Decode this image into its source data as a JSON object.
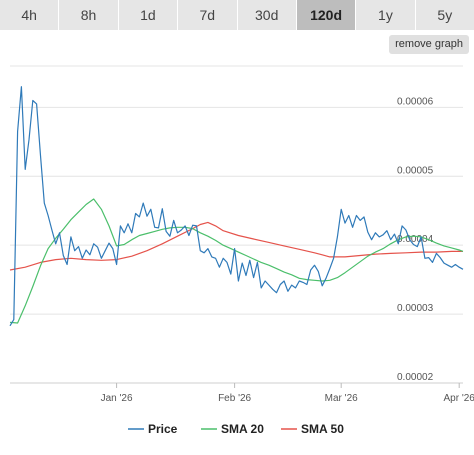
{
  "tabs": [
    {
      "label": "4h"
    },
    {
      "label": "8h"
    },
    {
      "label": "1d"
    },
    {
      "label": "7d"
    },
    {
      "label": "30d"
    },
    {
      "label": "120d",
      "active": true
    },
    {
      "label": "1y"
    },
    {
      "label": "5y"
    }
  ],
  "remove_label": "remove graph",
  "chart_data": {
    "type": "line",
    "y_ticks": [
      "0.00006",
      "0.00005",
      "0.00004",
      "0.00003",
      "0.00002"
    ],
    "y_tick_values": [
      6e-05,
      5e-05,
      4e-05,
      3e-05,
      2e-05
    ],
    "ylim": [
      2e-05,
      6.6e-05
    ],
    "x_ticks": [
      {
        "label": "Jan '26",
        "day": 28
      },
      {
        "label": "Feb '26",
        "day": 59
      },
      {
        "label": "Mar '26",
        "day": 87
      },
      {
        "label": "Apr '26",
        "day": 118
      }
    ],
    "x_range": [
      0,
      119
    ],
    "grid": true,
    "legend_position": "bottom",
    "series": [
      {
        "name": "Price",
        "color": "#2f7ab9",
        "values": [
          [
            0,
            2.83e-05
          ],
          [
            1,
            2.92e-05
          ],
          [
            2,
            5.65e-05
          ],
          [
            3,
            6.3e-05
          ],
          [
            4,
            5.1e-05
          ],
          [
            5,
            5.53e-05
          ],
          [
            6,
            6.1e-05
          ],
          [
            7,
            6.05e-05
          ],
          [
            8,
            5.3e-05
          ],
          [
            9,
            4.61e-05
          ],
          [
            10,
            4.43e-05
          ],
          [
            11,
            4.22e-05
          ],
          [
            12,
            4.02e-05
          ],
          [
            13,
            4.18e-05
          ],
          [
            14,
            3.85e-05
          ],
          [
            15,
            3.72e-05
          ],
          [
            16,
            4.12e-05
          ],
          [
            17,
            3.92e-05
          ],
          [
            18,
            3.98e-05
          ],
          [
            19,
            3.81e-05
          ],
          [
            20,
            3.93e-05
          ],
          [
            21,
            3.86e-05
          ],
          [
            22,
            4.02e-05
          ],
          [
            23,
            3.97e-05
          ],
          [
            24,
            3.81e-05
          ],
          [
            25,
            3.92e-05
          ],
          [
            26,
            4.03e-05
          ],
          [
            27,
            3.95e-05
          ],
          [
            28,
            3.72e-05
          ],
          [
            29,
            4.28e-05
          ],
          [
            30,
            4.18e-05
          ],
          [
            31,
            4.31e-05
          ],
          [
            32,
            4.18e-05
          ],
          [
            33,
            4.46e-05
          ],
          [
            34,
            4.41e-05
          ],
          [
            35,
            4.61e-05
          ],
          [
            36,
            4.42e-05
          ],
          [
            37,
            4.52e-05
          ],
          [
            38,
            4.26e-05
          ],
          [
            39,
            4.25e-05
          ],
          [
            40,
            4.53e-05
          ],
          [
            41,
            4.2e-05
          ],
          [
            42,
            4.13e-05
          ],
          [
            43,
            4.36e-05
          ],
          [
            44,
            4.18e-05
          ],
          [
            45,
            4.22e-05
          ],
          [
            46,
            4.28e-05
          ],
          [
            47,
            4.14e-05
          ],
          [
            48,
            4.29e-05
          ],
          [
            49,
            4.28e-05
          ],
          [
            50,
            3.92e-05
          ],
          [
            51,
            3.89e-05
          ],
          [
            52,
            3.95e-05
          ],
          [
            53,
            3.83e-05
          ],
          [
            54,
            3.81e-05
          ],
          [
            55,
            3.68e-05
          ],
          [
            56,
            3.81e-05
          ],
          [
            57,
            3.75e-05
          ],
          [
            58,
            3.58e-05
          ],
          [
            59,
            3.95e-05
          ],
          [
            60,
            3.48e-05
          ],
          [
            61,
            3.74e-05
          ],
          [
            62,
            3.56e-05
          ],
          [
            63,
            3.78e-05
          ],
          [
            64,
            3.53e-05
          ],
          [
            65,
            3.75e-05
          ],
          [
            66,
            3.38e-05
          ],
          [
            67,
            3.48e-05
          ],
          [
            68,
            3.42e-05
          ],
          [
            69,
            3.36e-05
          ],
          [
            70,
            3.31e-05
          ],
          [
            71,
            3.43e-05
          ],
          [
            72,
            3.48e-05
          ],
          [
            73,
            3.33e-05
          ],
          [
            74,
            3.42e-05
          ],
          [
            75,
            3.38e-05
          ],
          [
            76,
            3.48e-05
          ],
          [
            77,
            3.46e-05
          ],
          [
            78,
            3.43e-05
          ],
          [
            79,
            3.64e-05
          ],
          [
            80,
            3.71e-05
          ],
          [
            81,
            3.62e-05
          ],
          [
            82,
            3.41e-05
          ],
          [
            83,
            3.52e-05
          ],
          [
            84,
            3.66e-05
          ],
          [
            85,
            3.81e-05
          ],
          [
            86,
            4.12e-05
          ],
          [
            87,
            4.52e-05
          ],
          [
            88,
            4.32e-05
          ],
          [
            89,
            4.43e-05
          ],
          [
            90,
            4.26e-05
          ],
          [
            91,
            4.43e-05
          ],
          [
            92,
            4.36e-05
          ],
          [
            93,
            4.41e-05
          ],
          [
            94,
            4.19e-05
          ],
          [
            95,
            4.08e-05
          ],
          [
            96,
            4.18e-05
          ],
          [
            97,
            4.12e-05
          ],
          [
            98,
            4.15e-05
          ],
          [
            99,
            4.21e-05
          ],
          [
            100,
            4.08e-05
          ],
          [
            101,
            4.16e-05
          ],
          [
            102,
            4.02e-05
          ],
          [
            103,
            4.28e-05
          ],
          [
            104,
            4.22e-05
          ],
          [
            105,
            4.08e-05
          ],
          [
            106,
            4.01e-05
          ],
          [
            107,
            3.98e-05
          ],
          [
            108,
            4.12e-05
          ],
          [
            109,
            3.81e-05
          ],
          [
            110,
            3.82e-05
          ],
          [
            111,
            3.75e-05
          ],
          [
            112,
            3.88e-05
          ],
          [
            113,
            3.82e-05
          ],
          [
            114,
            3.74e-05
          ],
          [
            115,
            3.71e-05
          ],
          [
            116,
            3.68e-05
          ],
          [
            117,
            3.72e-05
          ],
          [
            118,
            3.68e-05
          ],
          [
            119,
            3.65e-05
          ]
        ]
      },
      {
        "name": "SMA 20",
        "color": "#4bbf6b",
        "values": [
          [
            0,
            2.88e-05
          ],
          [
            2,
            2.87e-05
          ],
          [
            4,
            3.12e-05
          ],
          [
            6,
            3.4e-05
          ],
          [
            8,
            3.7e-05
          ],
          [
            10,
            3.95e-05
          ],
          [
            12,
            4.1e-05
          ],
          [
            14,
            4.23e-05
          ],
          [
            16,
            4.37e-05
          ],
          [
            18,
            4.48e-05
          ],
          [
            20,
            4.59e-05
          ],
          [
            22,
            4.67e-05
          ],
          [
            24,
            4.52e-05
          ],
          [
            26,
            4.28e-05
          ],
          [
            28,
            3.99e-05
          ],
          [
            30,
            4.01e-05
          ],
          [
            32,
            4.08e-05
          ],
          [
            34,
            4.14e-05
          ],
          [
            36,
            4.17e-05
          ],
          [
            38,
            4.2e-05
          ],
          [
            40,
            4.23e-05
          ],
          [
            42,
            4.25e-05
          ],
          [
            44,
            4.26e-05
          ],
          [
            46,
            4.26e-05
          ],
          [
            48,
            4.24e-05
          ],
          [
            50,
            4.18e-05
          ],
          [
            52,
            4.13e-05
          ],
          [
            54,
            4.07e-05
          ],
          [
            56,
            4e-05
          ],
          [
            58,
            3.95e-05
          ],
          [
            60,
            3.9e-05
          ],
          [
            62,
            3.85e-05
          ],
          [
            64,
            3.8e-05
          ],
          [
            66,
            3.75e-05
          ],
          [
            68,
            3.71e-05
          ],
          [
            70,
            3.66e-05
          ],
          [
            72,
            3.61e-05
          ],
          [
            74,
            3.57e-05
          ],
          [
            76,
            3.52e-05
          ],
          [
            78,
            3.5e-05
          ],
          [
            80,
            3.49e-05
          ],
          [
            82,
            3.48e-05
          ],
          [
            84,
            3.49e-05
          ],
          [
            86,
            3.53e-05
          ],
          [
            88,
            3.6e-05
          ],
          [
            90,
            3.68e-05
          ],
          [
            92,
            3.76e-05
          ],
          [
            94,
            3.84e-05
          ],
          [
            96,
            3.9e-05
          ],
          [
            98,
            3.95e-05
          ],
          [
            100,
            4.02e-05
          ],
          [
            102,
            4.08e-05
          ],
          [
            104,
            4.12e-05
          ],
          [
            106,
            4.13e-05
          ],
          [
            108,
            4.12e-05
          ],
          [
            110,
            4.08e-05
          ],
          [
            112,
            4.03e-05
          ],
          [
            114,
            3.99e-05
          ],
          [
            116,
            3.96e-05
          ],
          [
            118,
            3.93e-05
          ],
          [
            119,
            3.91e-05
          ]
        ]
      },
      {
        "name": "SMA 50",
        "color": "#e5534b",
        "values": [
          [
            0,
            3.64e-05
          ],
          [
            4,
            3.68e-05
          ],
          [
            8,
            3.75e-05
          ],
          [
            12,
            3.79e-05
          ],
          [
            16,
            3.81e-05
          ],
          [
            20,
            3.79e-05
          ],
          [
            24,
            3.78e-05
          ],
          [
            28,
            3.79e-05
          ],
          [
            32,
            3.84e-05
          ],
          [
            36,
            3.92e-05
          ],
          [
            40,
            4.02e-05
          ],
          [
            44,
            4.13e-05
          ],
          [
            48,
            4.24e-05
          ],
          [
            50,
            4.3e-05
          ],
          [
            52,
            4.33e-05
          ],
          [
            54,
            4.28e-05
          ],
          [
            56,
            4.21e-05
          ],
          [
            60,
            4.14e-05
          ],
          [
            64,
            4.09e-05
          ],
          [
            68,
            4.04e-05
          ],
          [
            72,
            3.99e-05
          ],
          [
            76,
            3.94e-05
          ],
          [
            80,
            3.89e-05
          ],
          [
            82,
            3.86e-05
          ],
          [
            84,
            3.83e-05
          ],
          [
            88,
            3.83e-05
          ],
          [
            92,
            3.85e-05
          ],
          [
            96,
            3.87e-05
          ],
          [
            100,
            3.88e-05
          ],
          [
            104,
            3.89e-05
          ],
          [
            108,
            3.9e-05
          ],
          [
            112,
            3.9e-05
          ],
          [
            116,
            3.91e-05
          ],
          [
            119,
            3.91e-05
          ]
        ]
      }
    ]
  }
}
